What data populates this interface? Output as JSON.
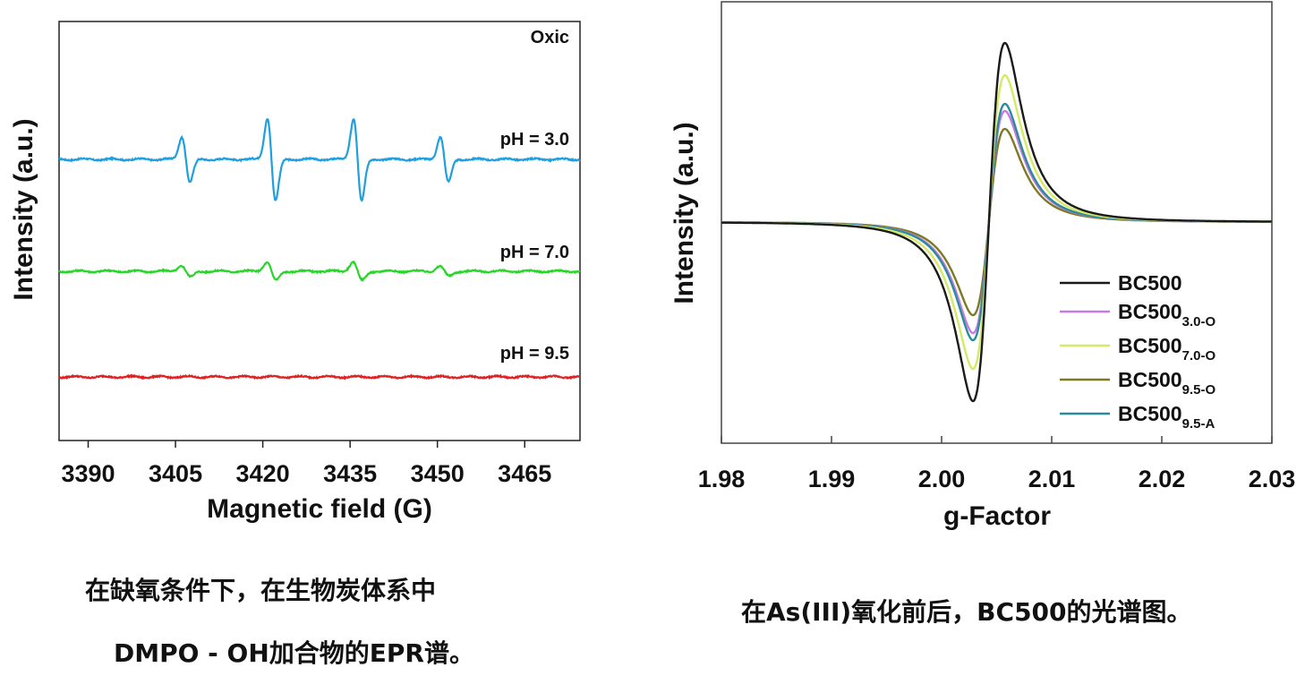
{
  "chart_data": [
    {
      "type": "line",
      "xlabel": "Magnetic field (G)",
      "ylabel": "Intensity (a.u.)",
      "annotation": "Oxic",
      "xlim": [
        3385,
        3474.5
      ],
      "x_ticks": [
        "3390",
        "3405",
        "3420",
        "3435",
        "3450",
        "3465"
      ],
      "y_ticks": [],
      "grid": false,
      "series": [
        {
          "name": "pH = 3.0",
          "color": "#1e9fe0",
          "peak_positions_G": [
            3406.8,
            3421.5,
            3436.3,
            3451.2
          ],
          "peak_amplitudes": [
            0.55,
            1.0,
            1.0,
            0.55
          ],
          "linewidth_G": 0.7
        },
        {
          "name": "pH = 7.0",
          "color": "#27d727",
          "peak_positions_G": [
            3406.8,
            3421.5,
            3436.3,
            3451.2
          ],
          "peak_amplitudes": [
            0.14,
            0.22,
            0.22,
            0.12
          ],
          "linewidth_G": 0.8
        },
        {
          "name": "pH = 9.5",
          "color": "#e02222",
          "peak_positions_G": [],
          "peak_amplitudes": [],
          "linewidth_G": 0.7
        }
      ],
      "caption_lines": [
        "在缺氧条件下，在生物炭体系中",
        "DMPO - OH加合物的EPR谱。"
      ]
    },
    {
      "type": "line",
      "xlabel": "g-Factor",
      "ylabel": "Intensity (a.u.)",
      "xlim": [
        1.98,
        2.03
      ],
      "x_ticks": [
        "1.98",
        "1.99",
        "2.00",
        "2.01",
        "2.02",
        "2.03"
      ],
      "y_ticks": [],
      "grid": false,
      "legend_position": "bottom-right",
      "center_g": 2.0043,
      "trough_g": 2.0028,
      "peak_g": 2.0057,
      "series": [
        {
          "name": "BC500",
          "sub": "",
          "color": "#1a1a1a",
          "amplitude": 1.0
        },
        {
          "name": "BC500",
          "sub": "3.0-O",
          "color": "#c77ae6",
          "amplitude": 0.62
        },
        {
          "name": "BC500",
          "sub": "7.0-O",
          "color": "#d6e866",
          "amplitude": 0.82
        },
        {
          "name": "BC500",
          "sub": "9.5-O",
          "color": "#7d7a22",
          "amplitude": 0.52
        },
        {
          "name": "BC500",
          "sub": "9.5-A",
          "color": "#2b8c99",
          "amplitude": 0.66
        }
      ],
      "caption": "在As(III)氧化前后，BC500的光谱图。"
    }
  ]
}
